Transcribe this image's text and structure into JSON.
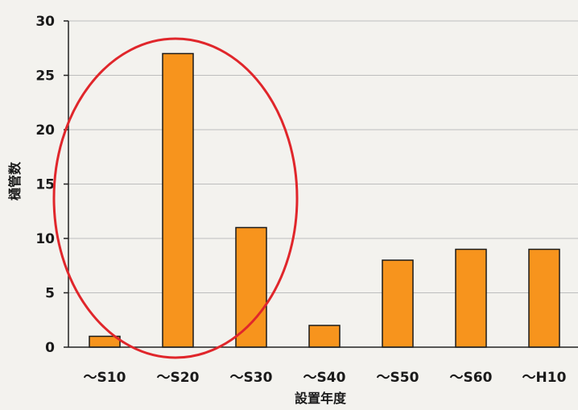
{
  "chart_data": {
    "type": "bar",
    "categories": [
      "～S10",
      "～S20",
      "～S30",
      "～S40",
      "～S50",
      "～S60",
      "～H10"
    ],
    "values": [
      1,
      27,
      11,
      2,
      8,
      9,
      9
    ],
    "xlabel": "設置年度",
    "ylabel": "樋管数",
    "ylim": [
      0,
      30
    ],
    "yticks": [
      0,
      5,
      10,
      15,
      20,
      25,
      30
    ],
    "grid": true,
    "bar_color": "#f7941d",
    "bar_edge_color": "#1a1a1a",
    "highlight_color": "#e0262b",
    "highlighted_categories": [
      "～S10",
      "～S20",
      "～S30"
    ]
  }
}
